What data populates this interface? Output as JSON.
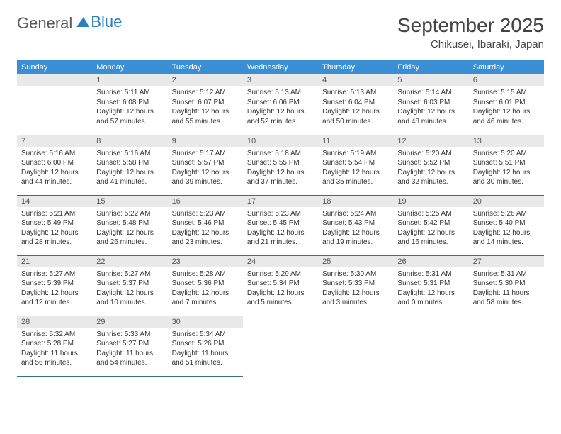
{
  "logo": {
    "text1": "General",
    "text2": "Blue"
  },
  "title": "September 2025",
  "location": "Chikusei, Ibaraki, Japan",
  "day_headers": [
    "Sunday",
    "Monday",
    "Tuesday",
    "Wednesday",
    "Thursday",
    "Friday",
    "Saturday"
  ],
  "colors": {
    "header_bg": "#3a8fd4",
    "header_fg": "#ffffff",
    "daynum_bg": "#e9e9e9",
    "border": "#3a6a9a",
    "text": "#333333"
  },
  "fonts": {
    "title_pt": 28,
    "location_pt": 15,
    "dayhead_pt": 11,
    "daynum_pt": 11,
    "info_pt": 10
  },
  "weeks": [
    [
      null,
      {
        "n": "1",
        "sr": "5:11 AM",
        "ss": "6:08 PM",
        "dl": "12 hours and 57 minutes."
      },
      {
        "n": "2",
        "sr": "5:12 AM",
        "ss": "6:07 PM",
        "dl": "12 hours and 55 minutes."
      },
      {
        "n": "3",
        "sr": "5:13 AM",
        "ss": "6:06 PM",
        "dl": "12 hours and 52 minutes."
      },
      {
        "n": "4",
        "sr": "5:13 AM",
        "ss": "6:04 PM",
        "dl": "12 hours and 50 minutes."
      },
      {
        "n": "5",
        "sr": "5:14 AM",
        "ss": "6:03 PM",
        "dl": "12 hours and 48 minutes."
      },
      {
        "n": "6",
        "sr": "5:15 AM",
        "ss": "6:01 PM",
        "dl": "12 hours and 46 minutes."
      }
    ],
    [
      {
        "n": "7",
        "sr": "5:16 AM",
        "ss": "6:00 PM",
        "dl": "12 hours and 44 minutes."
      },
      {
        "n": "8",
        "sr": "5:16 AM",
        "ss": "5:58 PM",
        "dl": "12 hours and 41 minutes."
      },
      {
        "n": "9",
        "sr": "5:17 AM",
        "ss": "5:57 PM",
        "dl": "12 hours and 39 minutes."
      },
      {
        "n": "10",
        "sr": "5:18 AM",
        "ss": "5:55 PM",
        "dl": "12 hours and 37 minutes."
      },
      {
        "n": "11",
        "sr": "5:19 AM",
        "ss": "5:54 PM",
        "dl": "12 hours and 35 minutes."
      },
      {
        "n": "12",
        "sr": "5:20 AM",
        "ss": "5:52 PM",
        "dl": "12 hours and 32 minutes."
      },
      {
        "n": "13",
        "sr": "5:20 AM",
        "ss": "5:51 PM",
        "dl": "12 hours and 30 minutes."
      }
    ],
    [
      {
        "n": "14",
        "sr": "5:21 AM",
        "ss": "5:49 PM",
        "dl": "12 hours and 28 minutes."
      },
      {
        "n": "15",
        "sr": "5:22 AM",
        "ss": "5:48 PM",
        "dl": "12 hours and 26 minutes."
      },
      {
        "n": "16",
        "sr": "5:23 AM",
        "ss": "5:46 PM",
        "dl": "12 hours and 23 minutes."
      },
      {
        "n": "17",
        "sr": "5:23 AM",
        "ss": "5:45 PM",
        "dl": "12 hours and 21 minutes."
      },
      {
        "n": "18",
        "sr": "5:24 AM",
        "ss": "5:43 PM",
        "dl": "12 hours and 19 minutes."
      },
      {
        "n": "19",
        "sr": "5:25 AM",
        "ss": "5:42 PM",
        "dl": "12 hours and 16 minutes."
      },
      {
        "n": "20",
        "sr": "5:26 AM",
        "ss": "5:40 PM",
        "dl": "12 hours and 14 minutes."
      }
    ],
    [
      {
        "n": "21",
        "sr": "5:27 AM",
        "ss": "5:39 PM",
        "dl": "12 hours and 12 minutes."
      },
      {
        "n": "22",
        "sr": "5:27 AM",
        "ss": "5:37 PM",
        "dl": "12 hours and 10 minutes."
      },
      {
        "n": "23",
        "sr": "5:28 AM",
        "ss": "5:36 PM",
        "dl": "12 hours and 7 minutes."
      },
      {
        "n": "24",
        "sr": "5:29 AM",
        "ss": "5:34 PM",
        "dl": "12 hours and 5 minutes."
      },
      {
        "n": "25",
        "sr": "5:30 AM",
        "ss": "5:33 PM",
        "dl": "12 hours and 3 minutes."
      },
      {
        "n": "26",
        "sr": "5:31 AM",
        "ss": "5:31 PM",
        "dl": "12 hours and 0 minutes."
      },
      {
        "n": "27",
        "sr": "5:31 AM",
        "ss": "5:30 PM",
        "dl": "11 hours and 58 minutes."
      }
    ],
    [
      {
        "n": "28",
        "sr": "5:32 AM",
        "ss": "5:28 PM",
        "dl": "11 hours and 56 minutes."
      },
      {
        "n": "29",
        "sr": "5:33 AM",
        "ss": "5:27 PM",
        "dl": "11 hours and 54 minutes."
      },
      {
        "n": "30",
        "sr": "5:34 AM",
        "ss": "5:26 PM",
        "dl": "11 hours and 51 minutes."
      },
      null,
      null,
      null,
      null
    ]
  ],
  "labels": {
    "sunrise": "Sunrise:",
    "sunset": "Sunset:",
    "daylight": "Daylight:"
  }
}
